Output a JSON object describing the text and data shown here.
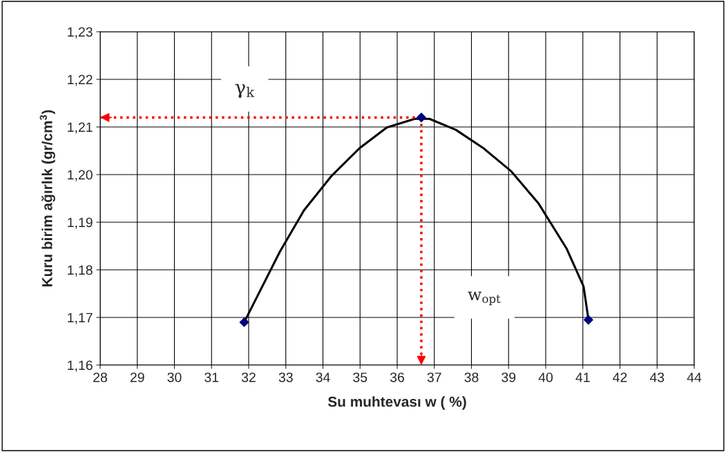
{
  "chart_data": {
    "type": "line",
    "xlabel": "Su muhtevası w ( %)",
    "ylabel": "Kuru birim ağırlık (gr/cm$^{3}$)",
    "xlim": [
      28,
      44
    ],
    "xticks": [
      28,
      29,
      30,
      31,
      32,
      33,
      34,
      35,
      36,
      37,
      38,
      39,
      40,
      41,
      42,
      43,
      44
    ],
    "ylim": [
      1.16,
      1.23
    ],
    "yticks": [
      {
        "value": 1.16,
        "label": "1,16"
      },
      {
        "value": 1.17,
        "label": "1,17"
      },
      {
        "value": 1.18,
        "label": "1,18"
      },
      {
        "value": 1.19,
        "label": "1,19"
      },
      {
        "value": 1.2,
        "label": "1,20"
      },
      {
        "value": 1.21,
        "label": "1,21"
      },
      {
        "value": 1.22,
        "label": "1,22"
      },
      {
        "value": 1.23,
        "label": "1,23"
      }
    ],
    "grid": true,
    "series": [
      {
        "color": "#000000",
        "marker": "none",
        "x": [
          31.88,
          32.84,
          33.49,
          34.23,
          34.98,
          35.72,
          36.47,
          36.87,
          37.58,
          38.33,
          39.07,
          39.81,
          40.56,
          41.02,
          41.15
        ],
        "values": [
          1.169,
          1.1838,
          1.1925,
          1.1997,
          1.2055,
          1.2099,
          1.2117,
          1.2117,
          1.2094,
          1.2055,
          1.2007,
          1.1939,
          1.1845,
          1.1765,
          1.1696
        ]
      },
      {
        "type": "scatter",
        "color": "#000080",
        "marker": "diamond",
        "x": [
          31.88,
          36.65,
          41.15
        ],
        "values": [
          1.169,
          1.212,
          1.1695
        ]
      }
    ],
    "ref_lines": [
      {
        "axis": "y",
        "value": 1.212,
        "label": "γ$_{k}$",
        "color": "#ff0000",
        "line_style": "dotted"
      },
      {
        "axis": "x",
        "value": 36.65,
        "label": "w$_{opt}$",
        "color": "#ff0000",
        "line_style": "dotted"
      }
    ]
  }
}
